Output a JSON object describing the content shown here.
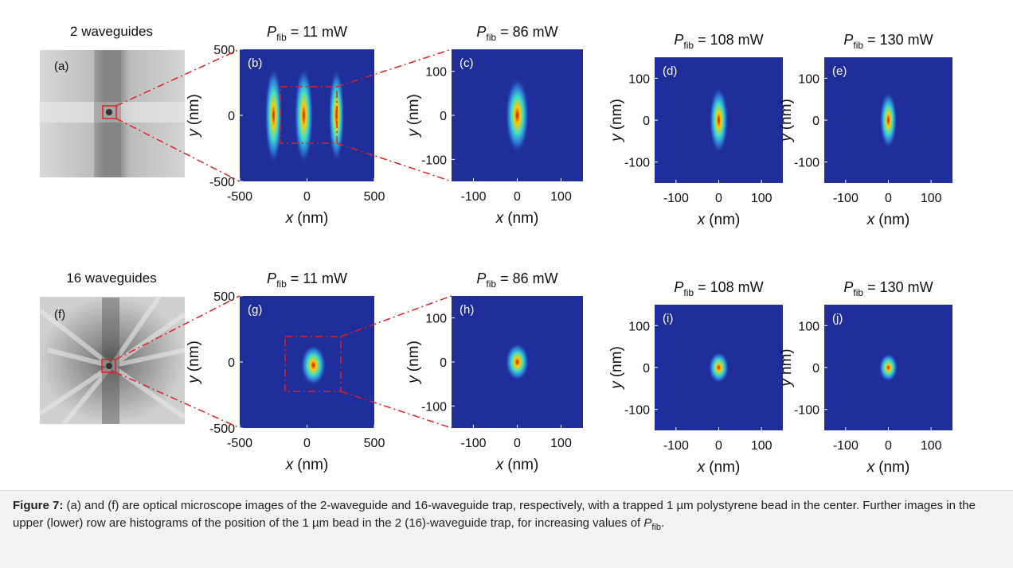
{
  "figure": {
    "power_symbol": "P",
    "power_subscript": "fib",
    "equals": "=",
    "xlabel": {
      "var": "x",
      "unit": "(nm)"
    },
    "rows": [
      {
        "label": "2 waveguides",
        "image_letter": "(a)",
        "panels": [
          {
            "letter": "(b)",
            "power": "11 mW",
            "xlim": [
              -500,
              500
            ],
            "ylim": [
              -500,
              500
            ],
            "xticks": [
              -500,
              0,
              500
            ],
            "yticks": [
              -500,
              0,
              500
            ],
            "ylabel": {
              "var": "y",
              "unit": "(nm)"
            }
          },
          {
            "letter": "(c)",
            "power": "86 mW",
            "xlim": [
              -150,
              150
            ],
            "ylim": [
              -150,
              150
            ],
            "xticks": [
              -100,
              0,
              100
            ],
            "yticks": [
              -100,
              0,
              100
            ],
            "ylabel": {
              "var": "y",
              "unit": "(nm)"
            }
          },
          {
            "letter": "(d)",
            "power": "108 mW",
            "xlim": [
              -150,
              150
            ],
            "ylim": [
              -150,
              150
            ],
            "xticks": [
              -100,
              0,
              100
            ],
            "yticks": [
              -100,
              0,
              100
            ],
            "ylabel": {
              "var": "y",
              "unit": "(nm)"
            }
          },
          {
            "letter": "(e)",
            "power": "130 mW",
            "xlim": [
              -150,
              150
            ],
            "ylim": [
              -150,
              150
            ],
            "xticks": [
              -100,
              0,
              100
            ],
            "yticks": [
              -100,
              0,
              100
            ],
            "ylabel": {
              "var": "y",
              "unit": "(nm)"
            }
          }
        ]
      },
      {
        "label": "16 waveguides",
        "image_letter": "(f)",
        "panels": [
          {
            "letter": "(g)",
            "power": "11 mW",
            "xlim": [
              -500,
              500
            ],
            "ylim": [
              -500,
              500
            ],
            "xticks": [
              -500,
              0,
              500
            ],
            "yticks": [
              -500,
              0,
              500
            ],
            "ylabel": {
              "var": "y",
              "unit": "(nm)"
            }
          },
          {
            "letter": "(h)",
            "power": "86 mW",
            "xlim": [
              -150,
              150
            ],
            "ylim": [
              -150,
              150
            ],
            "xticks": [
              -100,
              0,
              100
            ],
            "yticks": [
              -100,
              0,
              100
            ],
            "ylabel": {
              "var": "y",
              "unit": "(nm)"
            }
          },
          {
            "letter": "(i)",
            "power": "108 mW",
            "xlim": [
              -150,
              150
            ],
            "ylim": [
              -150,
              150
            ],
            "xticks": [
              -100,
              0,
              100
            ],
            "yticks": [
              -100,
              0,
              100
            ],
            "ylabel": {
              "var": "y",
              "unit": "(nm)"
            }
          },
          {
            "letter": "(j)",
            "power": "130 mW",
            "xlim": [
              -150,
              150
            ],
            "ylim": [
              -150,
              150
            ],
            "xticks": [
              -100,
              0,
              100
            ],
            "yticks": [
              -100,
              0,
              100
            ],
            "ylabel": {
              "var": "y",
              "unit": "nm)"
            }
          }
        ]
      }
    ],
    "caption": {
      "label": "Figure 7:",
      "text": "(a) and (f) are optical microscope images of the 2-waveguide and 16-waveguide trap, respectively, with a trapped 1 µm polystyrene bead in the center. Further images in the upper (lower) row are histograms of the position of the 1 µm bead in the 2 (16)-waveguide trap, for increasing values of ",
      "symbol": "P",
      "subscript": "fib",
      "end": "."
    }
  }
}
